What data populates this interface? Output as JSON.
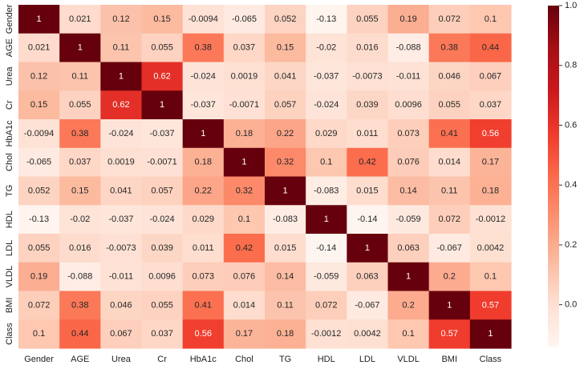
{
  "chart_data": {
    "type": "heatmap",
    "title": "",
    "xlabel": "",
    "ylabel": "",
    "labels": [
      "Gender",
      "AGE",
      "Urea",
      "Cr",
      "HbA1c",
      "Chol",
      "TG",
      "HDL",
      "LDL",
      "VLDL",
      "BMI",
      "Class"
    ],
    "values": [
      [
        1,
        0.021,
        0.12,
        0.15,
        -0.0094,
        -0.065,
        0.052,
        -0.13,
        0.055,
        0.19,
        0.072,
        0.1
      ],
      [
        0.021,
        1,
        0.11,
        0.055,
        0.38,
        0.037,
        0.15,
        -0.02,
        0.016,
        -0.088,
        0.38,
        0.44
      ],
      [
        0.12,
        0.11,
        1,
        0.62,
        -0.024,
        0.0019,
        0.041,
        -0.037,
        -0.0073,
        -0.011,
        0.046,
        0.067
      ],
      [
        0.15,
        0.055,
        0.62,
        1,
        -0.037,
        -0.0071,
        0.057,
        -0.024,
        0.039,
        0.0096,
        0.055,
        0.037
      ],
      [
        -0.0094,
        0.38,
        -0.024,
        -0.037,
        1,
        0.18,
        0.22,
        0.029,
        0.011,
        0.073,
        0.41,
        0.56
      ],
      [
        -0.065,
        0.037,
        0.0019,
        -0.0071,
        0.18,
        1,
        0.32,
        0.1,
        0.42,
        0.076,
        0.014,
        0.17
      ],
      [
        0.052,
        0.15,
        0.041,
        0.057,
        0.22,
        0.32,
        1,
        -0.083,
        0.015,
        0.14,
        0.11,
        0.18
      ],
      [
        -0.13,
        -0.02,
        -0.037,
        -0.024,
        0.029,
        0.1,
        -0.083,
        1,
        -0.14,
        -0.059,
        0.072,
        -0.0012
      ],
      [
        0.055,
        0.016,
        -0.0073,
        0.039,
        0.011,
        0.42,
        0.015,
        -0.14,
        1,
        0.063,
        -0.067,
        0.0042
      ],
      [
        0.19,
        -0.088,
        -0.011,
        0.0096,
        0.073,
        0.076,
        0.14,
        -0.059,
        0.063,
        1,
        0.2,
        0.1
      ],
      [
        0.072,
        0.38,
        0.046,
        0.055,
        0.41,
        0.014,
        0.11,
        0.072,
        -0.067,
        0.2,
        1,
        0.57
      ],
      [
        0.1,
        0.44,
        0.067,
        0.037,
        0.56,
        0.17,
        0.18,
        -0.0012,
        0.0042,
        0.1,
        0.57,
        1
      ]
    ],
    "colorbar": {
      "min": -0.14,
      "max": 1,
      "ticks": [
        1.0,
        0.8,
        0.6,
        0.4,
        0.2,
        0.0
      ],
      "tick_labels": [
        "1.0",
        "0.8",
        "0.6",
        "0.4",
        "0.2",
        "0.0"
      ],
      "colormap": "Reds"
    },
    "grid": false,
    "colors": {
      "low": "#fff5f0",
      "high": "#67000d"
    }
  }
}
